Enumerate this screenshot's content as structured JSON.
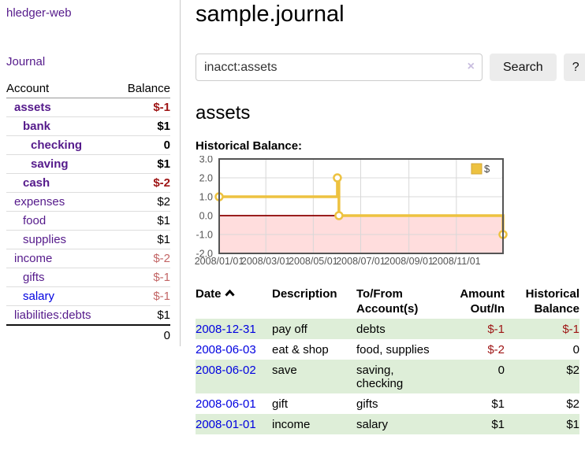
{
  "app": {
    "title": "hledger-web"
  },
  "colors": {
    "purple": "#551a8b",
    "blue": "#0000e0",
    "neg_strong": "#9e1414",
    "neg_soft": "#c36666",
    "row_green": "#deeed8"
  },
  "sidebar": {
    "nav_journal": "Journal",
    "table": {
      "col_account": "Account",
      "col_balance": "Balance",
      "accounts": [
        {
          "name": "assets",
          "balance": "$-1",
          "level": 1,
          "emph": true,
          "neg": "strong",
          "link": "purple"
        },
        {
          "name": "bank",
          "balance": "$1",
          "level": 2,
          "emph": true,
          "neg": "none",
          "link": "purple"
        },
        {
          "name": "checking",
          "balance": "0",
          "level": 3,
          "emph": true,
          "neg": "none",
          "link": "purple"
        },
        {
          "name": "saving",
          "balance": "$1",
          "level": 3,
          "emph": true,
          "neg": "none",
          "link": "purple"
        },
        {
          "name": "cash",
          "balance": "$-2",
          "level": 2,
          "emph": true,
          "neg": "strong",
          "link": "purple"
        },
        {
          "name": "expenses",
          "balance": "$2",
          "level": 1,
          "emph": false,
          "neg": "none",
          "link": "purple"
        },
        {
          "name": "food",
          "balance": "$1",
          "level": 2,
          "emph": false,
          "neg": "none",
          "link": "purple"
        },
        {
          "name": "supplies",
          "balance": "$1",
          "level": 2,
          "emph": false,
          "neg": "none",
          "link": "purple"
        },
        {
          "name": "income",
          "balance": "$-2",
          "level": 1,
          "emph": false,
          "neg": "soft",
          "link": "purple"
        },
        {
          "name": "gifts",
          "balance": "$-1",
          "level": 2,
          "emph": false,
          "neg": "soft",
          "link": "purple"
        },
        {
          "name": "salary",
          "balance": "$-1",
          "level": 2,
          "emph": false,
          "neg": "soft",
          "link": "blue"
        },
        {
          "name": "liabilities:debts",
          "balance": "$1",
          "level": 1,
          "emph": false,
          "neg": "none",
          "link": "purple"
        }
      ],
      "total": "0"
    }
  },
  "header": {
    "title": "sample.journal"
  },
  "search": {
    "value": "inacct:assets",
    "clear_icon": "×",
    "button": "Search",
    "help_button": "?"
  },
  "account_page": {
    "title": "assets",
    "chart_label": "Historical Balance:"
  },
  "chart_data": {
    "type": "line",
    "step": true,
    "x_range": [
      "2008-01-01",
      "2008-12-31"
    ],
    "ylim": [
      -2,
      3
    ],
    "y_ticks": [
      3.0,
      2.0,
      1.0,
      0.0,
      -1.0,
      -2.0
    ],
    "x_ticks": [
      "2008/01/01",
      "2008/03/01",
      "2008/05/01",
      "2008/07/01",
      "2008/09/01",
      "2008/11/01"
    ],
    "series": [
      {
        "name": "$",
        "color": "#edc240",
        "points": [
          [
            "2008-01-01",
            1
          ],
          [
            "2008-06-01",
            2
          ],
          [
            "2008-06-03",
            0
          ],
          [
            "2008-12-31",
            -1
          ]
        ]
      }
    ],
    "negative_region_color": "#ffdddd",
    "zero_line_color": "#8b0000",
    "grid_color": "#d8d8d8",
    "border_color": "#545454",
    "legend_position": "top-right"
  },
  "register": {
    "columns": {
      "date": "Date",
      "description": "Description",
      "tofrom": "To/From Account(s)",
      "amount": "Amount Out/In",
      "balance": "Historical Balance"
    },
    "rows": [
      {
        "date": "2008-12-31",
        "description": "pay off",
        "accounts": "debts",
        "amount": "$-1",
        "balance": "$-1",
        "shaded": true
      },
      {
        "date": "2008-06-03",
        "description": "eat & shop",
        "accounts": "food, supplies",
        "amount": "$-2",
        "balance": "0",
        "shaded": false
      },
      {
        "date": "2008-06-02",
        "description": "save",
        "accounts": "saving, checking",
        "amount": "0",
        "balance": "$2",
        "shaded": true
      },
      {
        "date": "2008-06-01",
        "description": "gift",
        "accounts": "gifts",
        "amount": "$1",
        "balance": "$2",
        "shaded": false
      },
      {
        "date": "2008-01-01",
        "description": "income",
        "accounts": "salary",
        "amount": "$1",
        "balance": "$1",
        "shaded": true
      }
    ]
  }
}
